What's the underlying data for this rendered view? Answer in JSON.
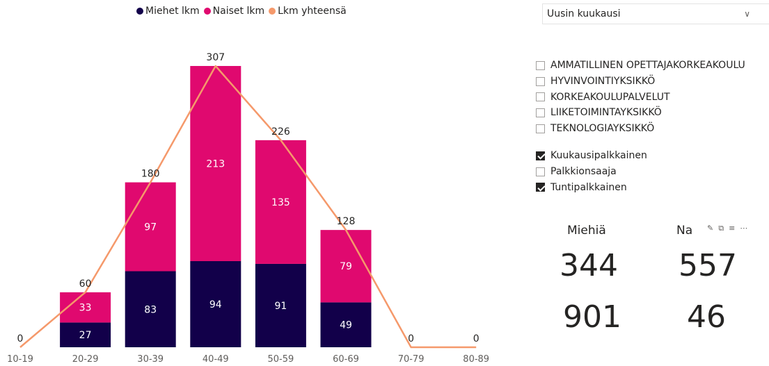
{
  "legend": [
    {
      "label": "Miehet lkm",
      "color": "#12004a"
    },
    {
      "label": "Naiset lkm",
      "color": "#e0096f"
    },
    {
      "label": "Lkm yhteensä",
      "color": "#f5996b"
    }
  ],
  "chart_data": {
    "type": "bar",
    "stacked": true,
    "categories": [
      "10-19",
      "20-29",
      "30-39",
      "40-49",
      "50-59",
      "60-69",
      "70-79",
      "80-89"
    ],
    "series": [
      {
        "name": "Miehet lkm",
        "kind": "bar",
        "color": "#12004a",
        "values": [
          0,
          27,
          83,
          94,
          91,
          49,
          0,
          0
        ]
      },
      {
        "name": "Naiset lkm",
        "kind": "bar",
        "color": "#e0096f",
        "values": [
          0,
          33,
          97,
          213,
          135,
          79,
          0,
          0
        ]
      },
      {
        "name": "Lkm yhteensä",
        "kind": "line",
        "color": "#f5996b",
        "values": [
          0,
          60,
          180,
          307,
          226,
          128,
          0,
          0
        ]
      }
    ],
    "ylim": [
      0,
      307
    ],
    "grid": false,
    "legend_position": "top-center"
  },
  "slicer": {
    "selected": "Uusin kuukausi"
  },
  "units": [
    {
      "label": "AMMATILLINEN OPETTAJAKORKEAKOULU",
      "checked": false
    },
    {
      "label": "HYVINVOINTIYKSIKKÖ",
      "checked": false
    },
    {
      "label": "KORKEAKOULUPALVELUT",
      "checked": false
    },
    {
      "label": "LIIKETOIMINTAYKSIKKÖ",
      "checked": false
    },
    {
      "label": "TEKNOLOGIAYKSIKKÖ",
      "checked": false
    }
  ],
  "pay_types": [
    {
      "label": "Kuukausipalkkainen",
      "checked": true
    },
    {
      "label": "Palkkionsaaja",
      "checked": false
    },
    {
      "label": "Tuntipalkkainen",
      "checked": true
    }
  ],
  "cards": {
    "men_label": "Miehiä",
    "women_label": "Na",
    "men_value": "344",
    "women_value": "557",
    "total_value": "901",
    "other_value": "46"
  }
}
